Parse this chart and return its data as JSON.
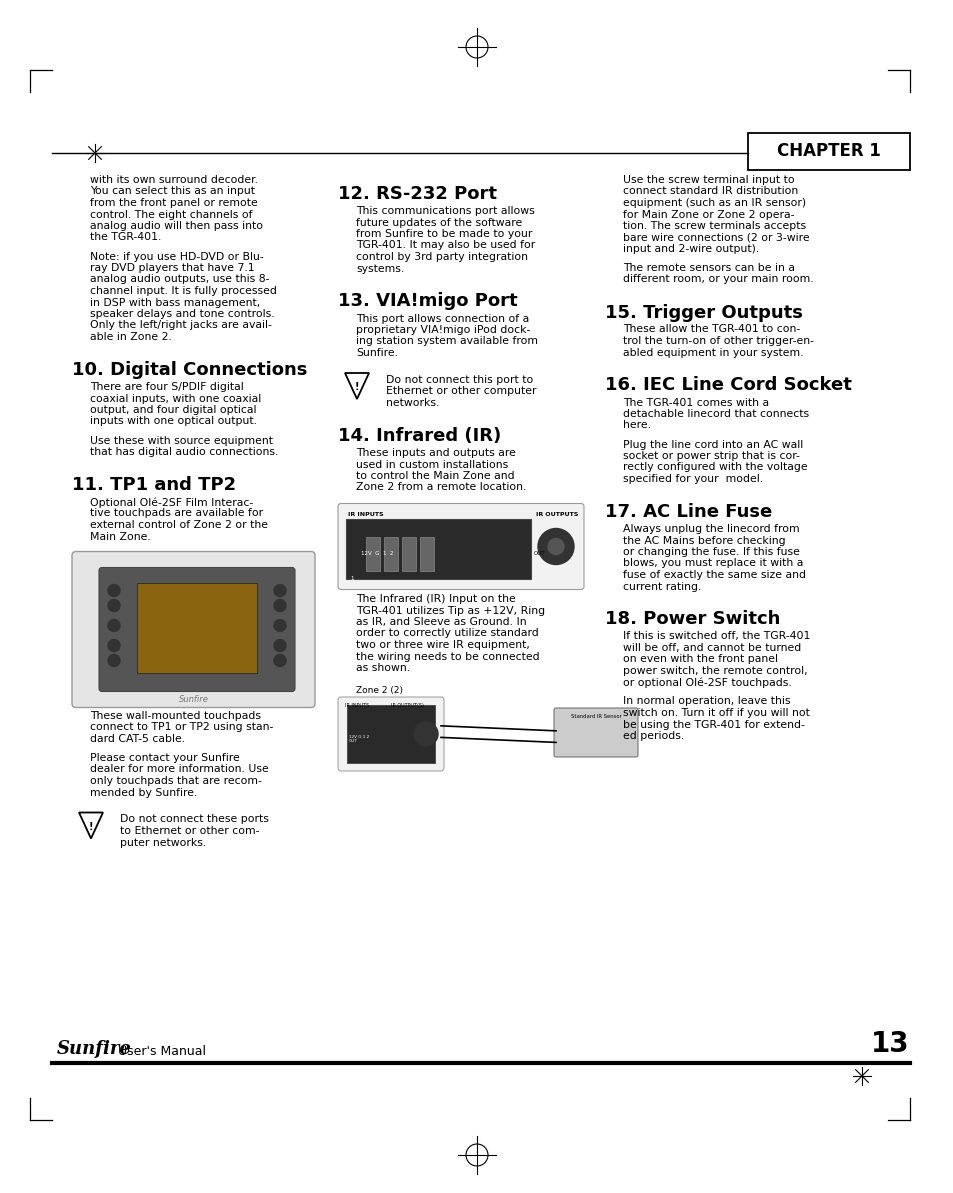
{
  "page_width": 9.54,
  "page_height": 11.93,
  "bg_color": "#ffffff",
  "chapter_label": "CHAPTER 1",
  "page_number": "13",
  "footer_brand": "Sunfire",
  "footer_text": " User's Manual",
  "col1_content": [
    {
      "type": "body",
      "text": "with its own surround decoder.\nYou can select this as an input\nfrom the front panel or remote\ncontrol. The eight channels of\nanalog audio will then pass into\nthe TGR-401."
    },
    {
      "type": "body",
      "text": "Note: if you use HD-DVD or Blu-\nray DVD players that have 7.1\nanalog audio outputs, use this 8-\nchannel input. It is fully processed\nin DSP with bass management,\nspeaker delays and tone controls.\nOnly the left/right jacks are avail-\nable in Zone 2."
    },
    {
      "type": "section",
      "text": "10. Digital Connections"
    },
    {
      "type": "body",
      "text": "There are four S/PDIF digital\ncoaxial inputs, with one coaxial\noutput, and four digital optical\ninputs with one optical output."
    },
    {
      "type": "body",
      "text": "Use these with source equipment\nthat has digital audio connections."
    },
    {
      "type": "section",
      "text": "11. TP1 and TP2"
    },
    {
      "type": "body",
      "text": "Optional Olé-2SF Film Interac-\ntive touchpads are available for\nexternal control of Zone 2 or the\nMain Zone."
    },
    {
      "type": "image_placeholder",
      "label": "touchpad_image"
    },
    {
      "type": "body",
      "text": "These wall-mounted touchpads\nconnect to TP1 or TP2 using stan-\ndard CAT-5 cable."
    },
    {
      "type": "body",
      "text": "Please contact your Sunfire\ndealer for more information. Use\nonly touchpads that are recom-\nmended by Sunfire."
    },
    {
      "type": "warning",
      "text": "Do not connect these ports\nto Ethernet or other com-\nputer networks."
    }
  ],
  "col2_content": [
    {
      "type": "section",
      "text": "12. RS-232 Port"
    },
    {
      "type": "body",
      "text": "This communications port allows\nfuture updates of the software\nfrom Sunfire to be made to your\nTGR-401. It may also be used for\ncontrol by 3rd party integration\nsystems."
    },
    {
      "type": "section",
      "text": "13. VIA!migo Port"
    },
    {
      "type": "body",
      "text": "This port allows connection of a\nproprietary VIA!migo iPod dock-\ning station system available from\nSunfire."
    },
    {
      "type": "warning",
      "text": "Do not connect this port to\nEthernet or other computer\nnetworks."
    },
    {
      "type": "section",
      "text": "14. Infrared (IR)"
    },
    {
      "type": "body",
      "text": "These inputs and outputs are\nused in custom installations\nto control the Main Zone and\nZone 2 from a remote location."
    },
    {
      "type": "ir_image_placeholder",
      "label": "ir_image"
    },
    {
      "type": "body",
      "text": "The Infrared (IR) Input on the\nTGR-401 utilizes Tip as +12V, Ring\nas IR, and Sleeve as Ground. In\norder to correctly utilize standard\ntwo or three wire IR equipment,\nthe wiring needs to be connected\nas shown."
    },
    {
      "type": "ir_image2_placeholder",
      "label": "ir_image2"
    }
  ],
  "col3_content": [
    {
      "type": "body",
      "text": "Use the screw terminal input to\nconnect standard IR distribution\nequipment (such as an IR sensor)\nfor Main Zone or Zone 2 opera-\ntion. The screw terminals accepts\nbare wire connections (2 or 3-wire\ninput and 2-wire output)."
    },
    {
      "type": "body",
      "text": "The remote sensors can be in a\ndifferent room, or your main room."
    },
    {
      "type": "section",
      "text": "15. Trigger Outputs"
    },
    {
      "type": "body",
      "text": "These allow the TGR-401 to con-\ntrol the turn-on of other trigger-en-\nabled equipment in your system."
    },
    {
      "type": "section",
      "text": "16. IEC Line Cord Socket"
    },
    {
      "type": "body",
      "text": "The TGR-401 comes with a\ndetachable linecord that connects\nhere."
    },
    {
      "type": "body",
      "text": "Plug the line cord into an AC wall\nsocket or power strip that is cor-\nrectly configured with the voltage\nspecified for your  model."
    },
    {
      "type": "section",
      "text": "17. AC Line Fuse"
    },
    {
      "type": "body",
      "text": "Always unplug the linecord from\nthe AC Mains before checking\nor changing the fuse. If this fuse\nblows, you must replace it with a\nfuse of exactly the same size and\ncurrent rating."
    },
    {
      "type": "section",
      "text": "18. Power Switch"
    },
    {
      "type": "body",
      "text": "If this is switched off, the TGR-401\nwill be off, and cannot be turned\non even with the front panel\npower switch, the remote control,\nor optional Olé-2SF touchpads."
    },
    {
      "type": "body",
      "text": "In normal operation, leave this\nswitch on. Turn it off if you will not\nbe using the TGR-401 for extend-\ned periods."
    }
  ]
}
